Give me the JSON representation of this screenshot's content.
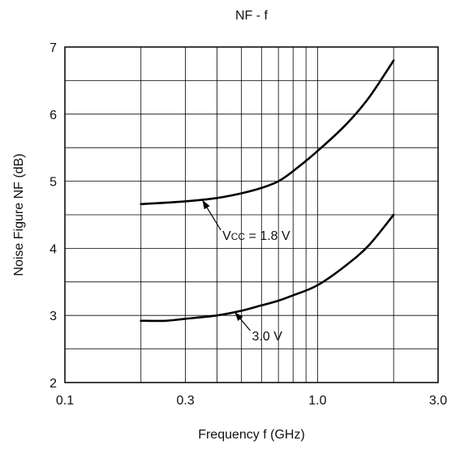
{
  "chart_data": {
    "type": "line",
    "title": "NF - f",
    "xlabel": "Frequency f (GHz)",
    "ylabel": "Noise Figure NF (dB)",
    "x_scale": "log",
    "xlim": [
      0.1,
      3.0
    ],
    "ylim": [
      2,
      7
    ],
    "x_ticks": [
      0.1,
      0.3,
      1.0,
      3.0
    ],
    "x_tick_labels": [
      "0.1",
      "0.3",
      "1.0",
      "3.0"
    ],
    "y_ticks": [
      2,
      3,
      4,
      5,
      6,
      7
    ],
    "y_tick_labels": [
      "2",
      "3",
      "4",
      "5",
      "6",
      "7"
    ],
    "grid": true,
    "series": [
      {
        "points": [
          [
            0.2,
            4.66
          ],
          [
            0.3,
            4.7
          ],
          [
            0.4,
            4.75
          ],
          [
            0.5,
            4.82
          ],
          [
            0.6,
            4.9
          ],
          [
            0.7,
            5.0
          ],
          [
            0.8,
            5.15
          ],
          [
            1.0,
            5.45
          ],
          [
            1.3,
            5.85
          ],
          [
            1.6,
            6.25
          ],
          [
            2.0,
            6.8
          ]
        ]
      },
      {
        "points": [
          [
            0.2,
            2.92
          ],
          [
            0.25,
            2.92
          ],
          [
            0.3,
            2.95
          ],
          [
            0.4,
            3.0
          ],
          [
            0.5,
            3.07
          ],
          [
            0.6,
            3.15
          ],
          [
            0.7,
            3.22
          ],
          [
            0.8,
            3.3
          ],
          [
            1.0,
            3.45
          ],
          [
            1.3,
            3.75
          ],
          [
            1.6,
            4.05
          ],
          [
            2.0,
            4.5
          ]
        ]
      }
    ],
    "annotations": [
      {
        "label_main": "V",
        "label_sub": "CC",
        "label_rest": " = 1.8 V",
        "arrow_to": [
          0.35,
          4.72
        ],
        "label_at": [
          0.42,
          4.2
        ]
      },
      {
        "label_main": "3.0 V",
        "label_sub": "",
        "label_rest": "",
        "arrow_to": [
          0.47,
          3.05
        ],
        "label_at": [
          0.55,
          2.7
        ]
      }
    ]
  }
}
